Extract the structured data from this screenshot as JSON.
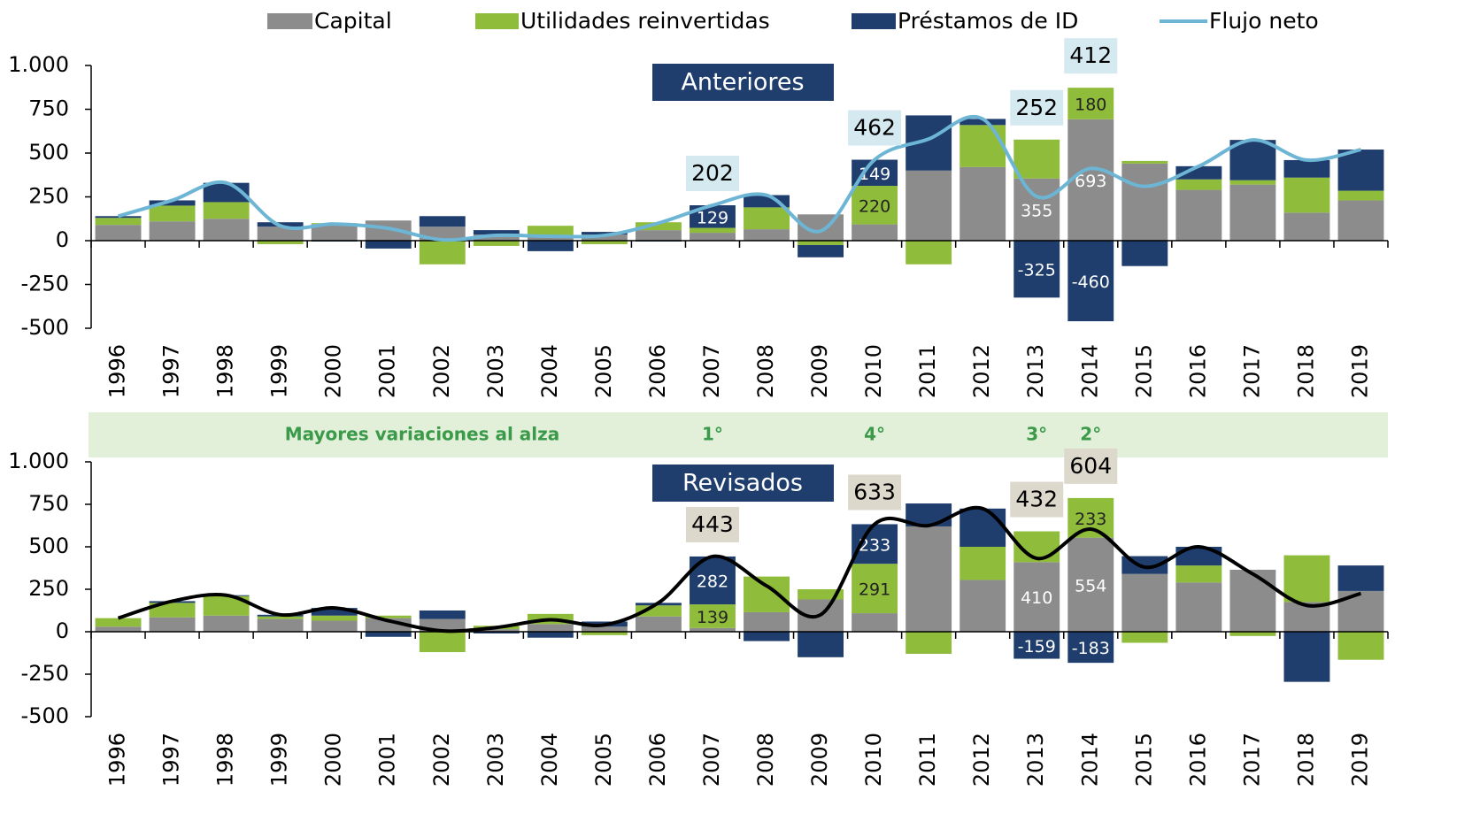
{
  "chart_data": [
    {
      "type": "stacked-bar-line",
      "title": "Anteriores",
      "categories": [
        "1996",
        "1997",
        "1998",
        "1999",
        "2000",
        "2001",
        "2002",
        "2003",
        "2004",
        "2005",
        "2006",
        "2007",
        "2008",
        "2009",
        "2010",
        "2011",
        "2012",
        "2013",
        "2014",
        "2015",
        "2016",
        "2017",
        "2018",
        "2019"
      ],
      "ylim": [
        -500,
        1000
      ],
      "yticks": [
        {
          "value": 1000,
          "label": "1.000"
        },
        750,
        500,
        250,
        0,
        -250,
        -500
      ],
      "series": [
        {
          "name": "Capital",
          "color": "#8c8c8c",
          "kind": "bar",
          "values": [
            90,
            110,
            125,
            80,
            95,
            115,
            80,
            35,
            30,
            35,
            60,
            45,
            65,
            150,
            93,
            400,
            420,
            355,
            693,
            440,
            290,
            320,
            160,
            230
          ],
          "value_labels": [
            null,
            null,
            null,
            null,
            null,
            null,
            null,
            null,
            null,
            null,
            null,
            null,
            null,
            null,
            null,
            null,
            null,
            "355",
            "693",
            null,
            null,
            null,
            null,
            null
          ]
        },
        {
          "name": "Utilidades reinvertidas",
          "color": "#8fbc3a",
          "kind": "bar",
          "values": [
            40,
            90,
            95,
            -20,
            5,
            0,
            -135,
            -30,
            55,
            -20,
            45,
            28,
            125,
            -25,
            220,
            -135,
            240,
            222,
            180,
            15,
            60,
            25,
            200,
            55
          ],
          "value_labels": [
            null,
            null,
            null,
            null,
            null,
            null,
            null,
            null,
            null,
            null,
            null,
            null,
            null,
            null,
            "220",
            null,
            null,
            null,
            "180",
            null,
            null,
            null,
            null,
            null
          ]
        },
        {
          "name": "Préstamos de ID",
          "color": "#1f3e6e",
          "kind": "bar",
          "values": [
            10,
            30,
            110,
            25,
            -5,
            -45,
            60,
            25,
            -60,
            15,
            -5,
            129,
            70,
            -70,
            149,
            315,
            35,
            -325,
            -460,
            -145,
            75,
            230,
            100,
            235
          ],
          "value_labels": [
            null,
            null,
            null,
            null,
            null,
            null,
            null,
            null,
            null,
            null,
            null,
            "129",
            null,
            null,
            "149",
            null,
            null,
            "-325",
            "-460",
            null,
            null,
            null,
            null,
            null
          ]
        },
        {
          "name": "Flujo neto",
          "color": "#6db5d5",
          "kind": "line",
          "values": [
            140,
            230,
            330,
            85,
            95,
            70,
            5,
            30,
            25,
            30,
            100,
            202,
            260,
            55,
            462,
            580,
            695,
            252,
            412,
            310,
            425,
            575,
            460,
            520
          ],
          "value_labels": [
            null,
            null,
            null,
            null,
            null,
            null,
            null,
            null,
            null,
            null,
            null,
            "202",
            null,
            null,
            "462",
            null,
            null,
            "252",
            "412",
            null,
            null,
            null,
            null,
            null
          ]
        }
      ]
    },
    {
      "type": "stacked-bar-line",
      "title": "Revisados",
      "categories": [
        "1996",
        "1997",
        "1998",
        "1999",
        "2000",
        "2001",
        "2002",
        "2003",
        "2004",
        "2005",
        "2006",
        "2007",
        "2008",
        "2009",
        "2010",
        "2011",
        "2012",
        "2013",
        "2014",
        "2015",
        "2016",
        "2017",
        "2018",
        "2019"
      ],
      "ylim": [
        -500,
        1000
      ],
      "yticks": [
        {
          "value": 1000,
          "label": "1.000"
        },
        750,
        500,
        250,
        0,
        -250,
        -500
      ],
      "annotation": {
        "text": "Mayores variaciones al alza",
        "ranks": [
          {
            "category": "2007",
            "label": "1°"
          },
          {
            "category": "2010",
            "label": "4°"
          },
          {
            "category": "2013",
            "label": "3°"
          },
          {
            "category": "2014",
            "label": "2°"
          }
        ]
      },
      "series": [
        {
          "color": "#8c8c8c",
          "kind": "bar",
          "values": [
            30,
            85,
            95,
            75,
            65,
            80,
            75,
            15,
            45,
            30,
            90,
            22,
            115,
            190,
            109,
            620,
            305,
            410,
            554,
            340,
            290,
            365,
            175,
            240
          ],
          "value_labels": [
            null,
            null,
            null,
            null,
            null,
            null,
            null,
            null,
            null,
            null,
            null,
            null,
            null,
            null,
            null,
            null,
            null,
            "410",
            "554",
            null,
            null,
            null,
            null,
            null
          ]
        },
        {
          "color": "#8fbc3a",
          "kind": "bar",
          "values": [
            50,
            85,
            115,
            15,
            30,
            15,
            -120,
            20,
            60,
            -20,
            65,
            139,
            210,
            60,
            291,
            -130,
            195,
            181,
            233,
            -65,
            100,
            -25,
            275,
            -165
          ],
          "value_labels": [
            null,
            null,
            null,
            null,
            null,
            null,
            null,
            null,
            null,
            null,
            null,
            "139",
            null,
            null,
            "291",
            null,
            null,
            null,
            "233",
            null,
            null,
            null,
            null,
            null
          ]
        },
        {
          "color": "#1f3e6e",
          "kind": "bar",
          "values": [
            0,
            10,
            5,
            10,
            45,
            -30,
            50,
            -10,
            -35,
            30,
            15,
            282,
            -55,
            -150,
            233,
            135,
            225,
            -159,
            -183,
            105,
            110,
            0,
            -295,
            150
          ],
          "value_labels": [
            null,
            null,
            null,
            null,
            null,
            null,
            null,
            null,
            null,
            null,
            null,
            "282",
            null,
            null,
            "233",
            null,
            null,
            "-159",
            "-183",
            null,
            null,
            null,
            null,
            null
          ]
        },
        {
          "color": "#000000",
          "kind": "line",
          "values": [
            80,
            180,
            215,
            100,
            140,
            65,
            5,
            25,
            70,
            40,
            170,
            443,
            270,
            100,
            633,
            625,
            725,
            432,
            604,
            380,
            500,
            340,
            155,
            225
          ],
          "value_labels": [
            null,
            null,
            null,
            null,
            null,
            null,
            null,
            null,
            null,
            null,
            null,
            "443",
            null,
            null,
            "633",
            null,
            null,
            "432",
            "604",
            null,
            null,
            null,
            null,
            null
          ]
        }
      ]
    }
  ]
}
